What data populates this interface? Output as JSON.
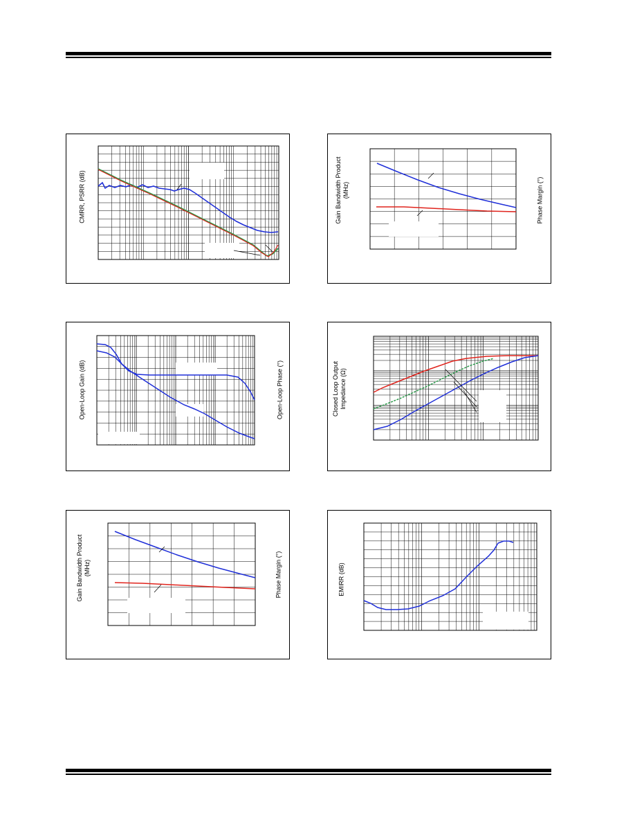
{
  "panels": [
    {
      "id": "p1",
      "y_label_left": "CMRR, PSRR (dB)",
      "y_label_left2": "",
      "y_label_right": "",
      "grid": "log",
      "colors": {
        "blue": "#1f2fd8",
        "green": "#2a9a4a",
        "red": "#e0231c"
      }
    },
    {
      "id": "p2",
      "y_label_left": "Gain Bandwidth Product",
      "y_label_left2": "(MHz)",
      "y_label_right": "Phase Margin (°)",
      "grid": "linear",
      "colors": {
        "blue": "#1f2fd8",
        "red": "#e0231c"
      }
    },
    {
      "id": "p3",
      "y_label_left": "Open-Loop Gain (dB)",
      "y_label_left2": "",
      "y_label_right": "Open-Loop Phase (°)",
      "grid": "log",
      "colors": {
        "blue": "#1f2fd8"
      }
    },
    {
      "id": "p4",
      "y_label_left": "Closed Loop Output",
      "y_label_left2": "Impedance (Ω)",
      "y_label_right": "",
      "grid": "log",
      "colors": {
        "blue": "#1f2fd8",
        "green": "#2a9a4a",
        "red": "#e0231c"
      }
    },
    {
      "id": "p5",
      "y_label_left": "Gain Bandwidth Product",
      "y_label_left2": "(MHz)",
      "y_label_right": "Phase Margin (°)",
      "grid": "linear",
      "colors": {
        "blue": "#1f2fd8",
        "red": "#e0231c"
      }
    },
    {
      "id": "p6",
      "y_label_left": "EMIRR (dB)",
      "y_label_left2": "",
      "y_label_right": "",
      "grid": "log",
      "colors": {
        "blue": "#1f2fd8"
      }
    }
  ]
}
